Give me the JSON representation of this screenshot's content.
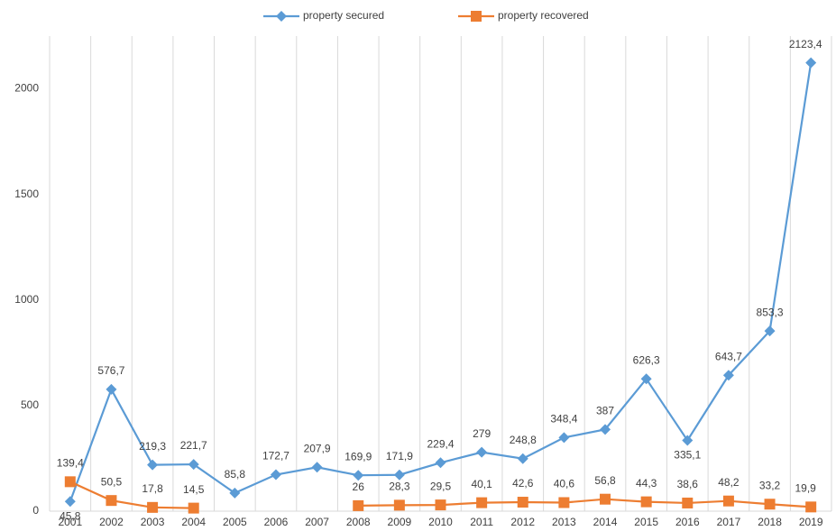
{
  "chart_data": {
    "type": "line",
    "categories": [
      "2001",
      "2002",
      "2003",
      "2004",
      "2005",
      "2006",
      "2007",
      "2008",
      "2009",
      "2010",
      "2011",
      "2012",
      "2013",
      "2014",
      "2015",
      "2016",
      "2017",
      "2018",
      "2019"
    ],
    "series": [
      {
        "name": "property secured",
        "color": "#5b9bd5",
        "marker": "diamond",
        "values": [
          45.8,
          576.7,
          219.3,
          221.7,
          85.8,
          172.7,
          207.9,
          169.9,
          171.9,
          229.4,
          279,
          248.8,
          348.4,
          387,
          626.3,
          335.1,
          643.7,
          853.3,
          2123.4
        ],
        "value_labels": [
          "45,8",
          "576,7",
          "219,3",
          "221,7",
          "85,8",
          "172,7",
          "207,9",
          "169,9",
          "171,9",
          "229,4",
          "279",
          "248,8",
          "348,4",
          "387",
          "626,3",
          "335,1",
          "643,7",
          "853,3",
          "2123,4"
        ]
      },
      {
        "name": "property recovered",
        "color": "#ed7d31",
        "marker": "square",
        "values": [
          139.4,
          50.5,
          17.8,
          14.5,
          null,
          null,
          null,
          26,
          28.3,
          29.5,
          40.1,
          42.6,
          40.6,
          56.8,
          44.3,
          38.6,
          48.2,
          33.2,
          19.9
        ],
        "value_labels": [
          "139,4",
          "50,5",
          "17,8",
          "14,5",
          null,
          null,
          null,
          "26",
          "28,3",
          "29,5",
          "40,1",
          "42,6",
          "40,6",
          "56,8",
          "44,3",
          "38,6",
          "48,2",
          "33,2",
          "19,9"
        ]
      }
    ],
    "ylim": [
      0,
      2250
    ],
    "yticks": [
      0,
      500,
      1000,
      1500,
      2000
    ],
    "grid": "x",
    "legend": "top"
  }
}
